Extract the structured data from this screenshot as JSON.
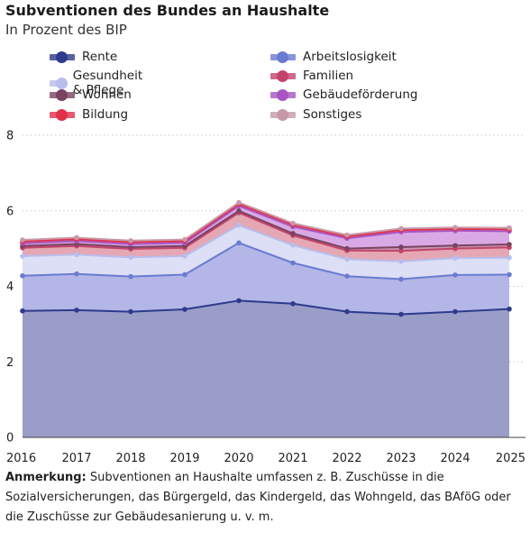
{
  "chart_data": {
    "type": "area",
    "stacked": true,
    "title": "Subventionen des Bundes an Haushalte",
    "subtitle": "In Prozent des BIP",
    "x": [
      "2016",
      "2017",
      "2018",
      "2019",
      "2020",
      "2021",
      "2022",
      "2023",
      "2024",
      "2025"
    ],
    "ylim": [
      0,
      8
    ],
    "yticks": [
      "0",
      "2",
      "4",
      "6",
      "8"
    ],
    "grid": true,
    "legend_position": "top",
    "series": [
      {
        "name": "Rente",
        "color": "#2e3a8c",
        "fill": "#9a9dc8",
        "values": [
          3.35,
          3.37,
          3.33,
          3.39,
          3.62,
          3.54,
          3.33,
          3.26,
          3.33,
          3.4
        ]
      },
      {
        "name": "Arbeitslosigkeit",
        "color": "#6b7bd1",
        "fill": "#b3b6e6",
        "values": [
          0.93,
          0.96,
          0.93,
          0.92,
          1.53,
          1.08,
          0.94,
          0.93,
          0.97,
          0.91
        ]
      },
      {
        "name": "Gesundheit & Pflege",
        "color": "#b7bdec",
        "fill": "#dcdff5",
        "values": [
          0.52,
          0.51,
          0.51,
          0.49,
          0.47,
          0.47,
          0.45,
          0.47,
          0.45,
          0.45
        ]
      },
      {
        "name": "Familien",
        "color": "#c3446a",
        "fill": "#e5a7b4",
        "values": [
          0.22,
          0.23,
          0.22,
          0.22,
          0.33,
          0.26,
          0.23,
          0.28,
          0.25,
          0.27
        ]
      },
      {
        "name": "Wohnen",
        "color": "#7a4360",
        "fill": "#c597b2",
        "values": [
          0.05,
          0.05,
          0.05,
          0.05,
          0.05,
          0.05,
          0.05,
          0.1,
          0.08,
          0.08
        ]
      },
      {
        "name": "Gebäudeförderung",
        "color": "#a855c3",
        "fill": "#d9a9e6",
        "values": [
          0.07,
          0.08,
          0.08,
          0.08,
          0.13,
          0.18,
          0.27,
          0.4,
          0.39,
          0.35
        ]
      },
      {
        "name": "Bildung",
        "color": "#e0304a",
        "fill": "#f1a5b0",
        "values": [
          0.05,
          0.05,
          0.05,
          0.05,
          0.05,
          0.05,
          0.05,
          0.05,
          0.05,
          0.05
        ]
      },
      {
        "name": "Sonstiges",
        "color": "#c799a8",
        "fill": "#e8cdd6",
        "values": [
          0.04,
          0.04,
          0.04,
          0.04,
          0.04,
          0.04,
          0.04,
          0.04,
          0.04,
          0.04
        ]
      }
    ]
  },
  "note": {
    "label": "Anmerkung:",
    "text": "Subventionen an Haushalte umfassen z. B. Zuschüsse in die Sozialversicherungen, das Bürgergeld, das Kindergeld, das Wohngeld, das BAföG oder die Zuschüsse zur Gebäudesanierung u. v. m."
  }
}
